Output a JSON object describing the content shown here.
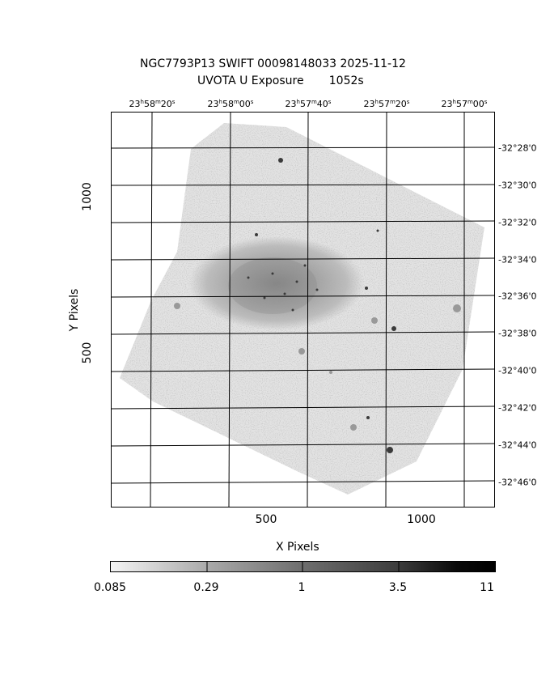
{
  "title_line1": "NGC7793P13 SWIFT 00098148033 2025-11-12",
  "title_line2": "UVOTA U Exposure       1052s",
  "ra_ticks": [
    {
      "h": "23",
      "m": "58",
      "s": "20"
    },
    {
      "h": "23",
      "m": "58",
      "s": "00"
    },
    {
      "h": "23",
      "m": "57",
      "s": "40"
    },
    {
      "h": "23",
      "m": "57",
      "s": "20"
    },
    {
      "h": "23",
      "m": "57",
      "s": "00"
    }
  ],
  "dec_ticks": [
    "-32°28'0",
    "-32°30'0",
    "-32°32'0",
    "-32°34'0",
    "-32°36'0",
    "-32°38'0",
    "-32°40'0",
    "-32°42'0",
    "-32°44'0",
    "-32°46'0"
  ],
  "x_ticks": [
    "500",
    "1000"
  ],
  "y_ticks": [
    "1000",
    "500"
  ],
  "x_label": "X Pixels",
  "y_label": "Y Pixels",
  "colorbar": {
    "ticks": [
      "0.085",
      "0.29",
      "1",
      "3.5",
      "11"
    ],
    "scale": "log",
    "colors": [
      "#f2f2f2",
      "#b0b0b0",
      "#6a6a6a",
      "#3a3a3a",
      "#000000"
    ]
  },
  "image": {
    "description_colors": {
      "background": "#ffffff",
      "field": "#d4d4d4",
      "galaxy": "#aaaaaa",
      "grid": "#000000"
    }
  }
}
